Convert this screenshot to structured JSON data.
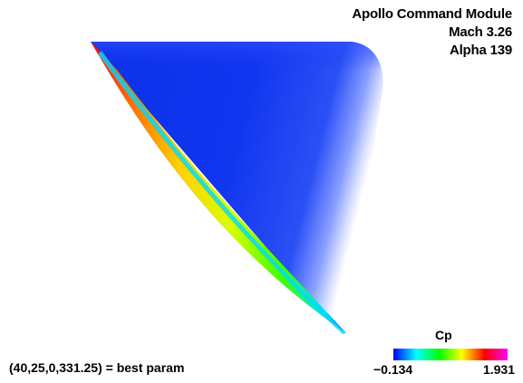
{
  "header": {
    "title_lines": [
      "Apollo Command Module",
      "Mach 3.26",
      "Alpha 139"
    ]
  },
  "status": {
    "best_param": "(40,25,0,331.25) = best param"
  },
  "colorbar": {
    "title": "Cp",
    "min_label": "−0.134",
    "max_label": "1.931",
    "colors": [
      "#0000ff",
      "#00ffff",
      "#00ff00",
      "#ffff00",
      "#ff0000",
      "#ff00ff"
    ]
  },
  "render": {
    "surface_primary_color": "#1236f0",
    "highlight_color": "#ffffff",
    "edge_colors": [
      "#ff0000",
      "#ffa500",
      "#ffff00",
      "#00ff00",
      "#00ffff"
    ]
  }
}
